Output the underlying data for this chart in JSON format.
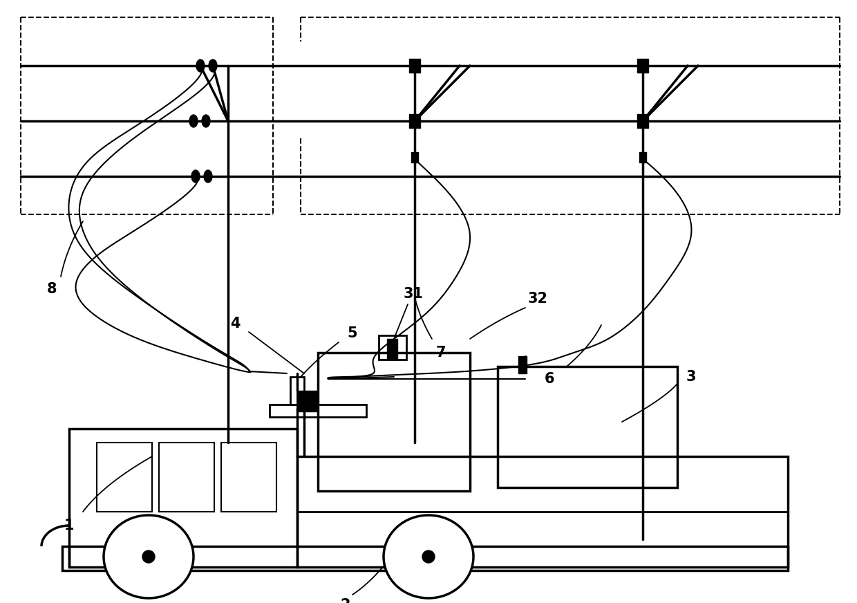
{
  "bg_color": "#ffffff",
  "line_color": "#000000",
  "fig_width": 12.4,
  "fig_height": 8.72,
  "dpi": 100
}
